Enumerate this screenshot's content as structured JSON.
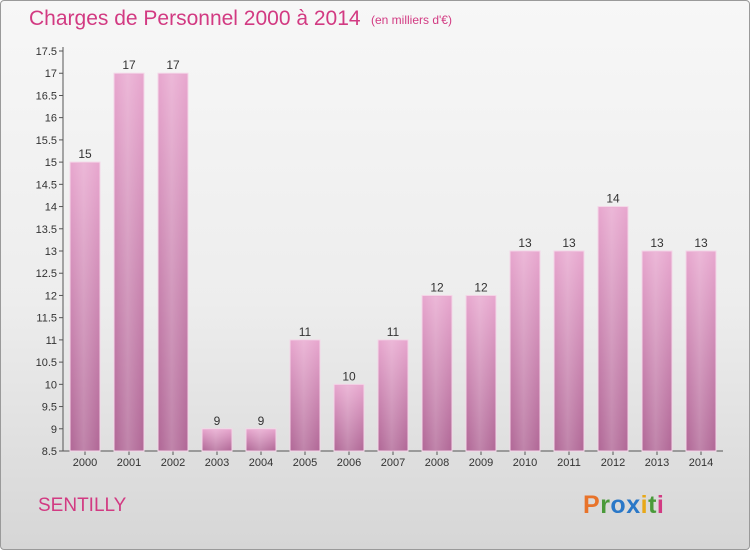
{
  "header": {
    "title": "Charges de Personnel 2000 à 2014",
    "subtitle": "(en milliers d'€)"
  },
  "footer": {
    "commune": "SENTILLY",
    "logo": {
      "letters": [
        "P",
        "r",
        "o",
        "x",
        "i",
        "t",
        "i"
      ],
      "colors": [
        "#e8732a",
        "#4a9a3a",
        "#2a78c8",
        "#2a78c8",
        "#e8a818",
        "#4a9a3a",
        "#d23a82"
      ]
    }
  },
  "colors": {
    "accent": "#d23a82",
    "bar_light": "#e8a8cf",
    "bar_dark": "#b26a98"
  },
  "chart_data": {
    "type": "bar",
    "categories": [
      "2000",
      "2001",
      "2002",
      "2003",
      "2004",
      "2005",
      "2006",
      "2007",
      "2008",
      "2009",
      "2010",
      "2011",
      "2012",
      "2013",
      "2014"
    ],
    "values": [
      15,
      17,
      17,
      9,
      9,
      11,
      10,
      11,
      12,
      12,
      13,
      13,
      14,
      13,
      13
    ],
    "data_labels": [
      "15",
      "17",
      "17",
      "9",
      "9",
      "11",
      "10",
      "11",
      "12",
      "12",
      "13",
      "13",
      "14",
      "13",
      "13"
    ],
    "yticks": [
      8.5,
      9,
      9.5,
      10,
      10.5,
      11,
      11.5,
      12,
      12.5,
      13,
      13.5,
      14,
      14.5,
      15,
      15.5,
      16,
      16.5,
      17,
      17.5
    ],
    "ytick_labels": [
      "8.5",
      "9",
      "9.5",
      "10",
      "10.5",
      "11",
      "11.5",
      "12",
      "12.5",
      "13",
      "13.5",
      "14",
      "14.5",
      "15",
      "15.5",
      "16",
      "16.5",
      "17",
      "17.5"
    ],
    "ylim": [
      8.5,
      17.5
    ],
    "grid": false,
    "legend": "none"
  }
}
